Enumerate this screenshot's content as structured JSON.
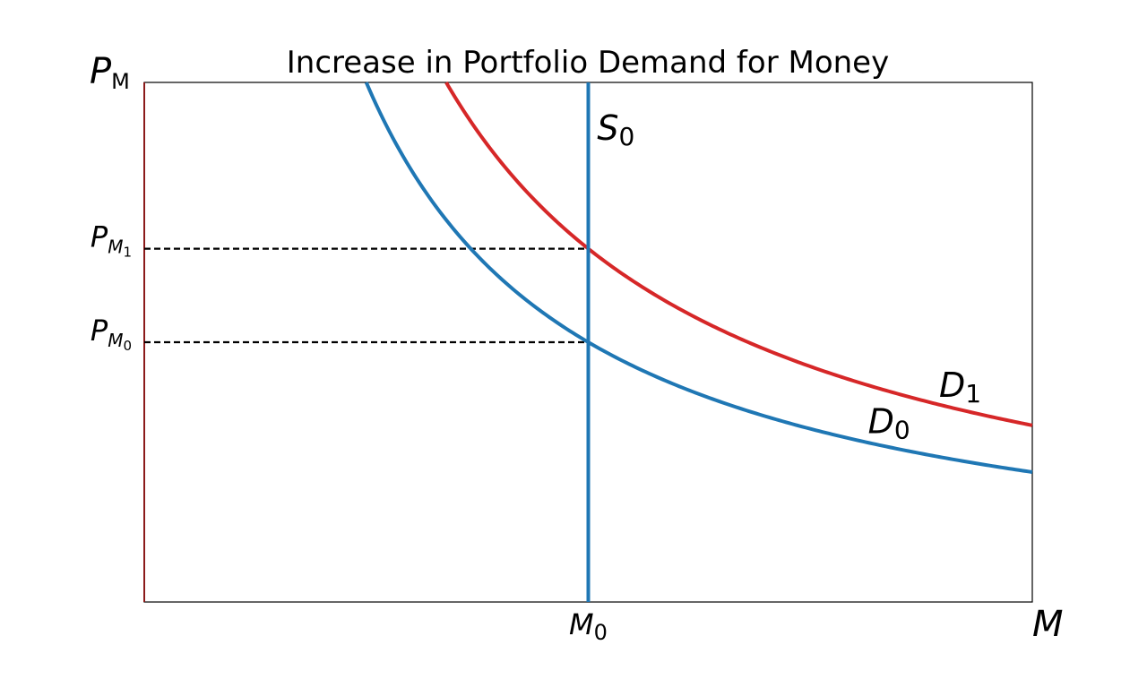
{
  "chart_data": {
    "type": "line",
    "title": "Increase in Portfolio Demand for Money",
    "xlabel": "M",
    "ylabel": "P_M",
    "xlim": [
      0,
      10
    ],
    "ylim": [
      0,
      10
    ],
    "grid": false,
    "legend": "none",
    "labels": {
      "y_main": "P",
      "y_main_sub": "M",
      "x_main": "M",
      "supply_main": "S",
      "supply_sub": "0",
      "d0_main": "D",
      "d0_sub": "0",
      "d1_main": "D",
      "d1_sub": "1",
      "x_tick_main": "M",
      "x_tick_sub": "0",
      "y_tick0_main": "P",
      "y_tick0_sub": "M",
      "y_tick0_subsub": "0",
      "y_tick1_main": "P",
      "y_tick1_sub": "M",
      "y_tick1_subsub": "1"
    },
    "series": [
      {
        "name": "D0",
        "color": "#1f77b4",
        "k": 25,
        "x_start": 2.5,
        "x_end": 10
      },
      {
        "name": "D1",
        "color": "#d62728",
        "k": 34,
        "x_start": 3.4,
        "x_end": 10
      },
      {
        "name": "S0",
        "color": "#1f77b4",
        "x": 5,
        "y_range": [
          0,
          10
        ]
      }
    ],
    "equilibria": [
      {
        "name": "PM0",
        "x": 5,
        "y": 5
      },
      {
        "name": "PM1",
        "x": 5,
        "y": 6.8
      }
    ],
    "annotations": [
      {
        "text": "S0",
        "x": 5.1,
        "y": 8.9
      },
      {
        "text": "D0",
        "x": 8.15,
        "y": 3.25
      },
      {
        "text": "D1",
        "x": 8.95,
        "y": 3.95
      }
    ],
    "x_ticks": [
      {
        "value": 5,
        "label": "M0"
      }
    ],
    "y_ticks": [
      {
        "value": 5,
        "label": "PM0"
      },
      {
        "value": 6.8,
        "label": "PM1"
      }
    ]
  }
}
